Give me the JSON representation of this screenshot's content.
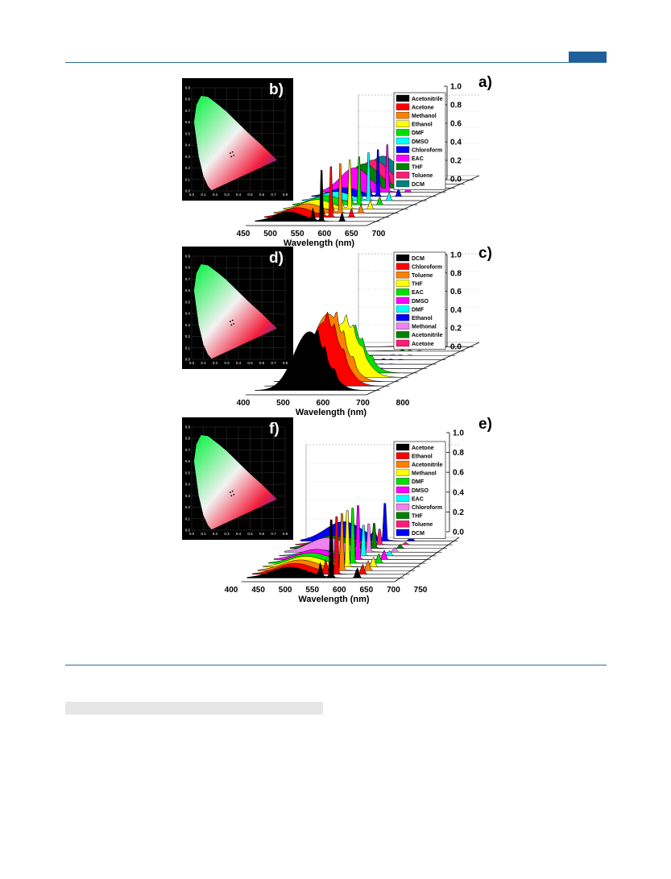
{
  "page": {
    "colors": {
      "rule": "#2e6e9e",
      "tab": "#1f5f9c",
      "bar": "#e6e6e6"
    }
  },
  "chart_data": [
    {
      "type": "area",
      "panel_label": "a)",
      "inset_label": "b)",
      "xlabel": "Wavelength (nm)",
      "xticks": [
        450,
        500,
        550,
        600,
        650,
        700
      ],
      "xlim": [
        440,
        740
      ],
      "zticks": [
        "0.0",
        "0.2",
        "0.4",
        "0.6",
        "0.8",
        "1.0"
      ],
      "zlim": [
        0,
        1
      ],
      "legend": [
        {
          "name": "Acetonitrile",
          "color": "#000000"
        },
        {
          "name": "Acetone",
          "color": "#ff0000"
        },
        {
          "name": "Methanol",
          "color": "#ff8000"
        },
        {
          "name": "Ethanol",
          "color": "#ffff00"
        },
        {
          "name": "DMF",
          "color": "#00e000"
        },
        {
          "name": "DMSO",
          "color": "#00ffff"
        },
        {
          "name": "Chloroform",
          "color": "#0000ff"
        },
        {
          "name": "EAC",
          "color": "#ff00ff"
        },
        {
          "name": "THF",
          "color": "#008000"
        },
        {
          "name": "Toluene",
          "color": "#ff1a75"
        },
        {
          "name": "DCM",
          "color": "#008080"
        }
      ],
      "series_peaks": [
        {
          "name": "Acetonitrile",
          "peak_nm": 615,
          "peak": 0.96
        },
        {
          "name": "Acetone",
          "peak_nm": 615,
          "peak": 0.95
        },
        {
          "name": "Methanol",
          "peak_nm": 615,
          "peak": 0.93
        },
        {
          "name": "Ethanol",
          "peak_nm": 615,
          "peak": 0.92
        },
        {
          "name": "DMF",
          "peak_nm": 615,
          "peak": 0.9
        },
        {
          "name": "DMSO",
          "peak_nm": 615,
          "peak": 0.9
        },
        {
          "name": "Chloroform",
          "peak_nm": 615,
          "peak": 0.88
        },
        {
          "name": "EAC",
          "peak_nm": 615,
          "peak": 0.87
        },
        {
          "name": "THF",
          "peak_nm": 615,
          "peak": 0.86
        },
        {
          "name": "Toluene",
          "peak_nm": 615,
          "peak": 0.85
        },
        {
          "name": "DCM",
          "peak_nm": 615,
          "peak": 0.84
        }
      ]
    },
    {
      "type": "area",
      "panel_label": "c)",
      "inset_label": "d)",
      "xlabel": "Wavelength (nm)",
      "xticks": [
        400,
        500,
        600,
        700,
        800
      ],
      "xlim": [
        390,
        830
      ],
      "zticks": [
        "0.0",
        "0.2",
        "0.4",
        "0.6",
        "0.8",
        "1.0"
      ],
      "zlim": [
        0,
        1
      ],
      "legend": [
        {
          "name": "DCM",
          "color": "#000000"
        },
        {
          "name": "Chloroform",
          "color": "#ff0000"
        },
        {
          "name": "Toluene",
          "color": "#ff8000"
        },
        {
          "name": "THF",
          "color": "#ffff00"
        },
        {
          "name": "EAC",
          "color": "#00e000"
        },
        {
          "name": "DMSO",
          "color": "#ff00ff"
        },
        {
          "name": "DMF",
          "color": "#00ffff"
        },
        {
          "name": "Ethanol",
          "color": "#0000ff"
        },
        {
          "name": "Methonal",
          "color": "#ee82ee"
        },
        {
          "name": "Acetonitrile",
          "color": "#008000"
        },
        {
          "name": "Acetone",
          "color": "#ff1a75"
        }
      ],
      "series_peaks": [
        {
          "name": "DCM",
          "peak_nm": 610,
          "peak": 0.78
        },
        {
          "name": "Chloroform",
          "peak_nm": 610,
          "peak": 0.85
        },
        {
          "name": "Toluene",
          "peak_nm": 560,
          "peak": 0.9
        },
        {
          "name": "THF",
          "peak_nm": 610,
          "peak": 0.72
        },
        {
          "name": "EAC",
          "peak_nm": 560,
          "peak": 0.62
        },
        {
          "name": "DMSO",
          "peak_nm": 610,
          "peak": 0.08
        },
        {
          "name": "DMF",
          "peak_nm": 610,
          "peak": 0.08
        },
        {
          "name": "Ethanol",
          "peak_nm": 610,
          "peak": 0.08
        },
        {
          "name": "Methonal",
          "peak_nm": 610,
          "peak": 0.08
        },
        {
          "name": "Acetonitrile",
          "peak_nm": 610,
          "peak": 0.1
        },
        {
          "name": "Acetone",
          "peak_nm": 610,
          "peak": 0.12
        }
      ]
    },
    {
      "type": "area",
      "panel_label": "e)",
      "inset_label": "f)",
      "xlabel": "Wavelength (nm)",
      "xticks": [
        400,
        450,
        500,
        550,
        600,
        650,
        700,
        750
      ],
      "xlim": [
        390,
        770
      ],
      "zticks": [
        "0.0",
        "0.2",
        "0.4",
        "0.6",
        "0.8",
        "1.0"
      ],
      "zlim": [
        0,
        1
      ],
      "legend": [
        {
          "name": "Acetone",
          "color": "#000000"
        },
        {
          "name": "Ethanol",
          "color": "#ff0000"
        },
        {
          "name": "Acetonitrile",
          "color": "#ff8000"
        },
        {
          "name": "Methanol",
          "color": "#ffff00"
        },
        {
          "name": "DMF",
          "color": "#00e000"
        },
        {
          "name": "DMSO",
          "color": "#ff00ff"
        },
        {
          "name": "EAC",
          "color": "#00ffff"
        },
        {
          "name": "Chloroform",
          "color": "#ee82ee"
        },
        {
          "name": "THF",
          "color": "#008000"
        },
        {
          "name": "Toluene",
          "color": "#ff1a75"
        },
        {
          "name": "DCM",
          "color": "#0000ff"
        }
      ],
      "series_peaks": [
        {
          "name": "Acetone",
          "peak_nm": 615,
          "peak": 0.95
        },
        {
          "name": "Ethanol",
          "peak_nm": 615,
          "peak": 0.94
        },
        {
          "name": "Acetonitrile",
          "peak_nm": 615,
          "peak": 0.93
        },
        {
          "name": "Methanol",
          "peak_nm": 615,
          "peak": 0.92
        },
        {
          "name": "DMF",
          "peak_nm": 615,
          "peak": 0.9
        },
        {
          "name": "DMSO",
          "peak_nm": 615,
          "peak": 0.88
        },
        {
          "name": "EAC",
          "peak_nm": 615,
          "peak": 0.5
        },
        {
          "name": "Chloroform",
          "peak_nm": 615,
          "peak": 0.45
        },
        {
          "name": "THF",
          "peak_nm": 615,
          "peak": 0.4
        },
        {
          "name": "Toluene",
          "peak_nm": 615,
          "peak": 0.25
        },
        {
          "name": "DCM",
          "peak_nm": 615,
          "peak": 0.6
        }
      ]
    }
  ],
  "cie": {
    "x_ticks": [
      "0.0",
      "0.1",
      "0.2",
      "0.3",
      "0.4",
      "0.5",
      "0.6",
      "0.7",
      "0.8"
    ],
    "y_ticks": [
      "0.0",
      "0.1",
      "0.2",
      "0.3",
      "0.4",
      "0.5",
      "0.6",
      "0.7",
      "0.8",
      "0.9"
    ]
  }
}
